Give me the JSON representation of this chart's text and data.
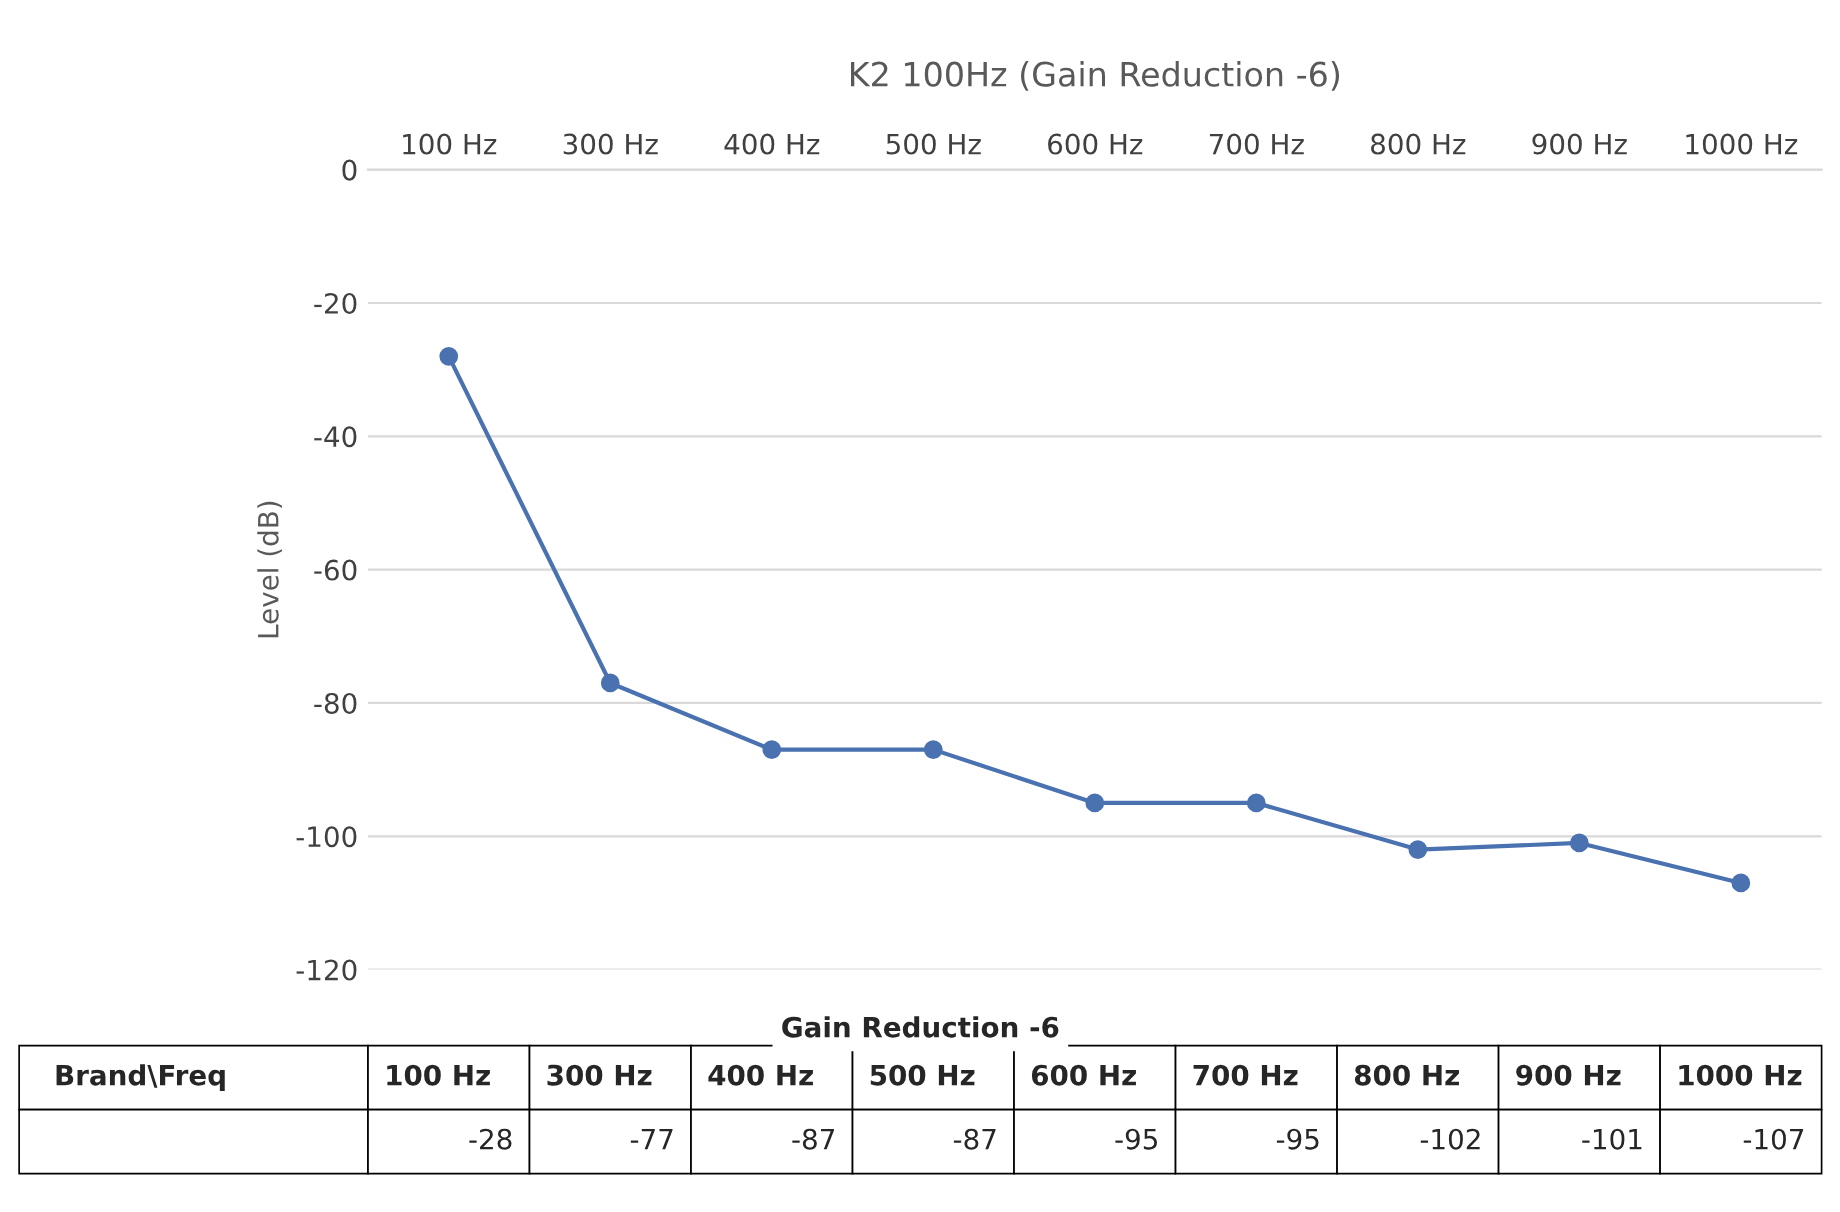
{
  "chart_data": {
    "type": "line",
    "title": "K2 100Hz (Gain Reduction -6)",
    "ylabel": "Level (dB)",
    "categories": [
      "100 Hz",
      "300 Hz",
      "400 Hz",
      "500 Hz",
      "600 Hz",
      "700 Hz",
      "800 Hz",
      "900 Hz",
      "1000 Hz"
    ],
    "series": [
      {
        "color": "#4a72b0",
        "values": [
          -28,
          -77,
          -87,
          -87,
          -95,
          -95,
          -102,
          -101,
          -107
        ]
      }
    ],
    "ylim": [
      -120,
      0
    ],
    "yticks": [
      -120,
      -100,
      -80,
      -60,
      -40,
      -20,
      0
    ],
    "grid": "y",
    "marker": "circle",
    "line_style": "solid",
    "data_labels": true,
    "annotations": [
      "Gain Reduction -6",
      "Brand\\Freq"
    ]
  }
}
